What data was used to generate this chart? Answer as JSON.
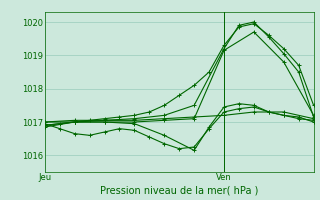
{
  "bg_color": "#cce8dc",
  "grid_color": "#99ccbb",
  "line_color": "#006600",
  "marker_color": "#006600",
  "xlabel": "Pression niveau de la mer( hPa )",
  "ylim": [
    1015.5,
    1020.3
  ],
  "yticks": [
    1016,
    1017,
    1018,
    1019,
    1020
  ],
  "xmin": 0,
  "xmax": 36,
  "x_jeu": 0,
  "x_ven": 24,
  "series": [
    [
      0.0,
      1016.9,
      2,
      1016.95,
      4,
      1017.0,
      6,
      1017.05,
      8,
      1017.1,
      10,
      1017.15,
      12,
      1017.2,
      14,
      1017.3,
      16,
      1017.5,
      18,
      1017.8,
      20,
      1018.1,
      22,
      1018.5,
      24,
      1019.3,
      26,
      1019.85,
      28,
      1019.95,
      30,
      1019.6,
      32,
      1019.2,
      34,
      1018.7,
      36,
      1017.5
    ],
    [
      0.0,
      1016.85,
      4,
      1017.0,
      8,
      1017.05,
      12,
      1017.1,
      16,
      1017.2,
      20,
      1017.5,
      24,
      1019.2,
      26,
      1019.9,
      28,
      1020.0,
      30,
      1019.55,
      32,
      1019.05,
      34,
      1018.5,
      36,
      1017.15
    ],
    [
      0.0,
      1016.9,
      4,
      1017.0,
      8,
      1017.0,
      12,
      1017.0,
      16,
      1017.05,
      20,
      1017.1,
      24,
      1019.15,
      28,
      1019.7,
      32,
      1018.8,
      36,
      1017.2
    ],
    [
      0.0,
      1017.0,
      4,
      1017.05,
      8,
      1017.05,
      12,
      1017.05,
      16,
      1017.1,
      20,
      1017.15,
      24,
      1017.2,
      28,
      1017.3,
      32,
      1017.3,
      36,
      1017.1
    ],
    [
      0.0,
      1017.0,
      4,
      1017.0,
      8,
      1017.0,
      12,
      1016.95,
      16,
      1016.6,
      20,
      1016.15,
      22,
      1016.85,
      24,
      1017.45,
      26,
      1017.55,
      28,
      1017.5,
      30,
      1017.3,
      32,
      1017.2,
      34,
      1017.15,
      36,
      1017.0
    ],
    [
      0.0,
      1016.95,
      2,
      1016.8,
      4,
      1016.65,
      6,
      1016.6,
      8,
      1016.7,
      10,
      1016.8,
      12,
      1016.75,
      14,
      1016.55,
      16,
      1016.35,
      18,
      1016.2,
      20,
      1016.25,
      22,
      1016.8,
      24,
      1017.3,
      26,
      1017.4,
      28,
      1017.45,
      30,
      1017.3,
      32,
      1017.2,
      34,
      1017.1,
      36,
      1017.05
    ]
  ],
  "vline_x": 24,
  "marker_size": 3.5,
  "linewidth": 0.8,
  "tick_fontsize": 6,
  "xlabel_fontsize": 7,
  "xtick_fontsize": 6
}
